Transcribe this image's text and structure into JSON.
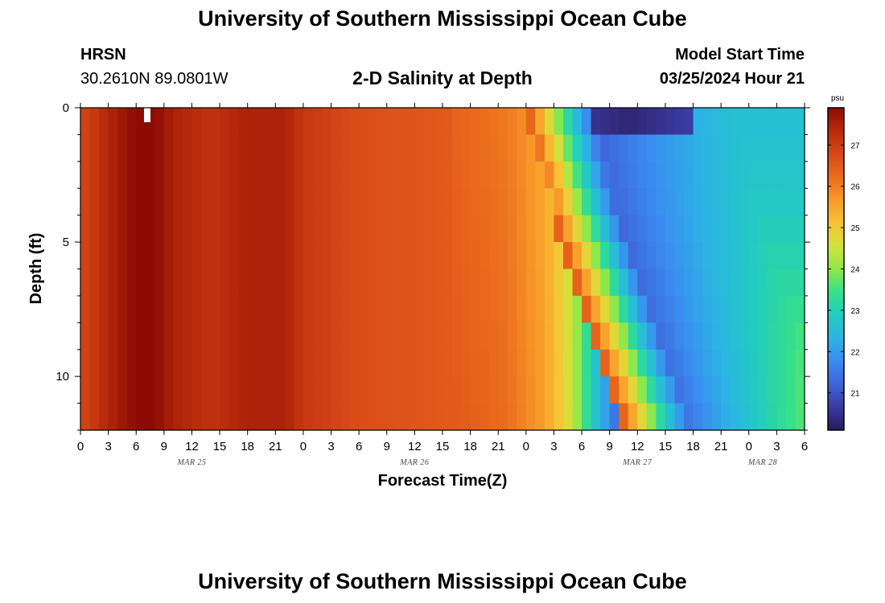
{
  "header": {
    "title": "University of Southern Mississippi Ocean Cube",
    "station": "HRSN",
    "coords": "30.2610N  89.0801W",
    "plot_title": "2-D Salinity at Depth",
    "model_start_label": "Model Start Time",
    "model_start_value": "03/25/2024 Hour 21"
  },
  "footer": {
    "title": "University of Southern Mississippi Ocean Cube"
  },
  "colors": {
    "palette": [
      "#2a1a5a",
      "#3a3aa0",
      "#3f63d8",
      "#3a8cf0",
      "#2cb4e4",
      "#22ccc0",
      "#36e08a",
      "#8ee84a",
      "#d4e23a",
      "#f8c234",
      "#f89a2a",
      "#ea6a1c",
      "#d8481a",
      "#b82a0c",
      "#8c0c04"
    ]
  },
  "chart_data": {
    "type": "heatmap",
    "title": "2-D Salinity at Depth",
    "xlabel": "Forecast Time(Z)",
    "ylabel": "Depth (ft)",
    "x_range_hours_from_mar25_00z": [
      0,
      78
    ],
    "y_range_ft": [
      0,
      12
    ],
    "y_ticks": [
      0,
      5,
      10
    ],
    "x_tick_labels": [
      "0",
      "3",
      "6",
      "9",
      "12",
      "15",
      "18",
      "21",
      "0",
      "3",
      "6",
      "9",
      "12",
      "15",
      "18",
      "21",
      "0",
      "3",
      "6",
      "9",
      "12",
      "15",
      "18",
      "21",
      "0",
      "3",
      "6"
    ],
    "day_labels": [
      "MAR 25",
      "MAR 26",
      "MAR 27",
      "MAR 28"
    ],
    "colorbar": {
      "unit": "psu",
      "ticks": [
        21,
        22,
        23,
        24,
        25,
        26,
        27
      ],
      "range": [
        20.1,
        27.9
      ]
    },
    "values_description_rows": "rows are depth layers 0..11 ft (0.5 to 11.5 centers); columns every 1 hour from 0 to 77",
    "base_profile_by_hour": [
      [
        0,
        26.8
      ],
      [
        2,
        27.2
      ],
      [
        4,
        27.6
      ],
      [
        6,
        27.9
      ],
      [
        8,
        27.9
      ],
      [
        10,
        27.5
      ],
      [
        14,
        27.2
      ],
      [
        18,
        27.5
      ],
      [
        22,
        27.5
      ],
      [
        24,
        27.1
      ],
      [
        30,
        26.7
      ],
      [
        40,
        26.5
      ],
      [
        46,
        26.2
      ],
      [
        50,
        25.6
      ],
      [
        53,
        24.5
      ],
      [
        55,
        23.0
      ],
      [
        57,
        21.8
      ],
      [
        58,
        21.2
      ],
      [
        60,
        20.6
      ],
      [
        63,
        20.5
      ],
      [
        66,
        21.0
      ],
      [
        70,
        21.5
      ],
      [
        74,
        22.0
      ],
      [
        78,
        22.4
      ]
    ],
    "front_hour_by_depth_ft": [
      [
        0,
        52
      ],
      [
        2,
        53.5
      ],
      [
        4,
        55
      ],
      [
        6,
        57
      ],
      [
        8,
        59
      ],
      [
        10,
        61
      ],
      [
        12,
        63
      ]
    ],
    "bottom_salinity_end": 24.2,
    "surface_salinity_end": 22.6
  }
}
